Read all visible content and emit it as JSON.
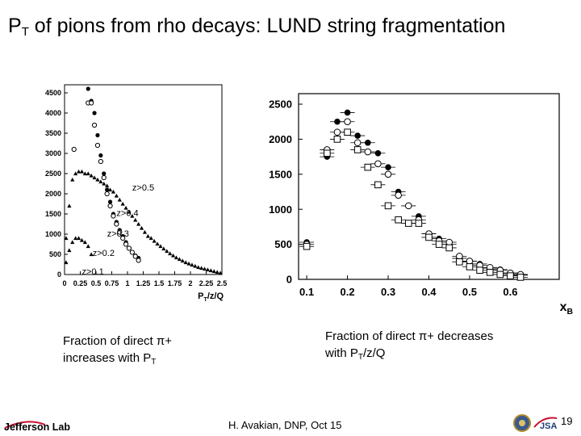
{
  "slide": {
    "title_main": "P",
    "title_sub": "T",
    "title_rest": " of pions from rho decays: LUND string fragmentation",
    "caption_left": {
      "line1": "Fraction of direct π+",
      "line2_main": "increases with P",
      "line2_sub": "T"
    },
    "caption_right": {
      "line1": "Fraction of direct π+ decreases",
      "line2_main": "with P",
      "line2_sub": "T",
      "line2_rest": "/z/Q"
    },
    "footer": "H. Avakian, DNP,  Oct 15",
    "page_number": "19",
    "logo_text": "Jefferson Lab",
    "emblem_text": "JSA"
  },
  "colors": {
    "series_fill": "#000000",
    "background": "#ffffff",
    "logo_red": "#c8102e"
  },
  "chart_data": [
    {
      "type": "scatter",
      "title": "",
      "xlabel": "PT/z/Q",
      "ylabel": "",
      "xlim": [
        0,
        2.5
      ],
      "ylim": [
        0,
        4700
      ],
      "xticks": [
        "0",
        "0.25",
        "0.5",
        "0.75",
        "1",
        "1.25",
        "1.5",
        "1.75",
        "2",
        "2.25",
        "2.5"
      ],
      "xtick_values": [
        0,
        0.25,
        0.5,
        0.75,
        1,
        1.25,
        1.5,
        1.75,
        2,
        2.25,
        2.5
      ],
      "yticks": [
        "0",
        "500",
        "1000",
        "1500",
        "2000",
        "2500",
        "3000",
        "3500",
        "4000",
        "4500"
      ],
      "ytick_values": [
        0,
        500,
        1000,
        1500,
        2000,
        2500,
        3000,
        3500,
        4000,
        4500
      ],
      "annotations": [
        {
          "text": "z>0.5",
          "x": 1.25,
          "y": 2080
        },
        {
          "text": "z>0.4",
          "x": 1.0,
          "y": 1450
        },
        {
          "text": "z>0.3",
          "x": 0.85,
          "y": 940
        },
        {
          "text": "z>0.2",
          "x": 0.62,
          "y": 460
        },
        {
          "text": "z>0.1",
          "x": 0.45,
          "y": 0
        }
      ],
      "series": [
        {
          "marker": "circle-filled",
          "x": [
            0.375,
            0.425,
            0.475,
            0.525,
            0.575,
            0.625,
            0.675,
            0.725,
            0.775,
            0.825,
            0.875,
            0.925,
            0.975,
            1.025,
            1.075,
            1.125,
            1.175
          ],
          "y": [
            4600,
            4300,
            4000,
            3450,
            2950,
            2500,
            2100,
            1800,
            1500,
            1300,
            1100,
            950,
            800,
            650,
            550,
            470,
            410
          ]
        },
        {
          "marker": "circle-open",
          "x": [
            0.15,
            0.375,
            0.425,
            0.475,
            0.525,
            0.575,
            0.625,
            0.675,
            0.725,
            0.775,
            0.825,
            0.875,
            0.925,
            0.975,
            1.025,
            1.075,
            1.125,
            1.175
          ],
          "y": [
            3100,
            4250,
            4250,
            3700,
            3200,
            2800,
            2400,
            2000,
            1700,
            1450,
            1250,
            1050,
            900,
            750,
            650,
            550,
            450,
            350
          ]
        },
        {
          "marker": "triangle-filled",
          "x": [
            0.025,
            0.075,
            0.125,
            0.175,
            0.225,
            0.275,
            0.325,
            0.375,
            0.425,
            0.475,
            0.525,
            0.575,
            0.625,
            0.675,
            0.725,
            0.775,
            0.825,
            0.875,
            0.925,
            0.975,
            1.025,
            1.075,
            1.125,
            1.175,
            1.225,
            1.275,
            1.325,
            1.375,
            1.425,
            1.475,
            1.525,
            1.575,
            1.625,
            1.675,
            1.725,
            1.775,
            1.825,
            1.875,
            1.925,
            1.975,
            2.025,
            2.075,
            2.125,
            2.175,
            2.225,
            2.275,
            2.325,
            2.375,
            2.425,
            2.475
          ],
          "y": [
            900,
            1700,
            2350,
            2500,
            2550,
            2550,
            2500,
            2500,
            2450,
            2400,
            2350,
            2300,
            2250,
            2200,
            2100,
            2050,
            1950,
            1850,
            1750,
            1650,
            1550,
            1450,
            1350,
            1250,
            1150,
            1050,
            950,
            900,
            830,
            760,
            700,
            640,
            580,
            520,
            470,
            420,
            380,
            340,
            300,
            270,
            240,
            210,
            180,
            160,
            140,
            120,
            100,
            80,
            60,
            40
          ]
        },
        {
          "marker": "triangle-filled",
          "x": [
            0.025,
            0.075,
            0.125,
            0.175,
            0.225,
            0.275,
            0.325,
            0.375,
            0.425
          ],
          "y": [
            300,
            600,
            800,
            900,
            900,
            850,
            800,
            700,
            500
          ]
        }
      ]
    },
    {
      "type": "scatter",
      "title": "",
      "xlabel": "xB",
      "ylabel": "",
      "xlim": [
        0.08,
        0.72
      ],
      "ylim": [
        0,
        2650
      ],
      "xticks": [
        "0.1",
        "0.2",
        "0.3",
        "0.4",
        "0.5",
        "0.6"
      ],
      "xtick_values": [
        0.1,
        0.2,
        0.3,
        0.4,
        0.5,
        0.6
      ],
      "yticks": [
        "0",
        "500",
        "1000",
        "1500",
        "2000",
        "2500"
      ],
      "ytick_values": [
        0,
        500,
        1000,
        1500,
        2000,
        2500
      ],
      "series": [
        {
          "marker": "circle-filled",
          "x": [
            0.1,
            0.15,
            0.175,
            0.2,
            0.225,
            0.25,
            0.275,
            0.3,
            0.325,
            0.35,
            0.375,
            0.4,
            0.425,
            0.45,
            0.475,
            0.5,
            0.525,
            0.55,
            0.575,
            0.6,
            0.625
          ],
          "y": [
            530,
            1750,
            2250,
            2380,
            2050,
            1950,
            1800,
            1600,
            1250,
            1050,
            900,
            650,
            580,
            500,
            300,
            260,
            220,
            160,
            140,
            90,
            60
          ]
        },
        {
          "marker": "circle-open",
          "x": [
            0.1,
            0.15,
            0.175,
            0.2,
            0.225,
            0.25,
            0.275,
            0.3,
            0.325,
            0.35,
            0.375,
            0.4,
            0.425,
            0.45,
            0.475,
            0.5,
            0.525,
            0.55,
            0.575,
            0.6,
            0.625
          ],
          "y": [
            500,
            1850,
            2100,
            2250,
            1950,
            1820,
            1650,
            1500,
            1200,
            1050,
            850,
            650,
            550,
            530,
            330,
            260,
            200,
            170,
            130,
            90,
            70
          ]
        },
        {
          "marker": "square-open",
          "x": [
            0.1,
            0.15,
            0.175,
            0.2,
            0.225,
            0.25,
            0.275,
            0.3,
            0.325,
            0.35,
            0.375,
            0.4,
            0.425,
            0.45,
            0.475,
            0.5,
            0.525,
            0.55,
            0.575,
            0.6,
            0.625
          ],
          "y": [
            470,
            1800,
            2000,
            2100,
            1850,
            1600,
            1350,
            1050,
            850,
            800,
            800,
            600,
            500,
            450,
            250,
            180,
            130,
            100,
            70,
            50,
            30
          ]
        }
      ]
    }
  ]
}
